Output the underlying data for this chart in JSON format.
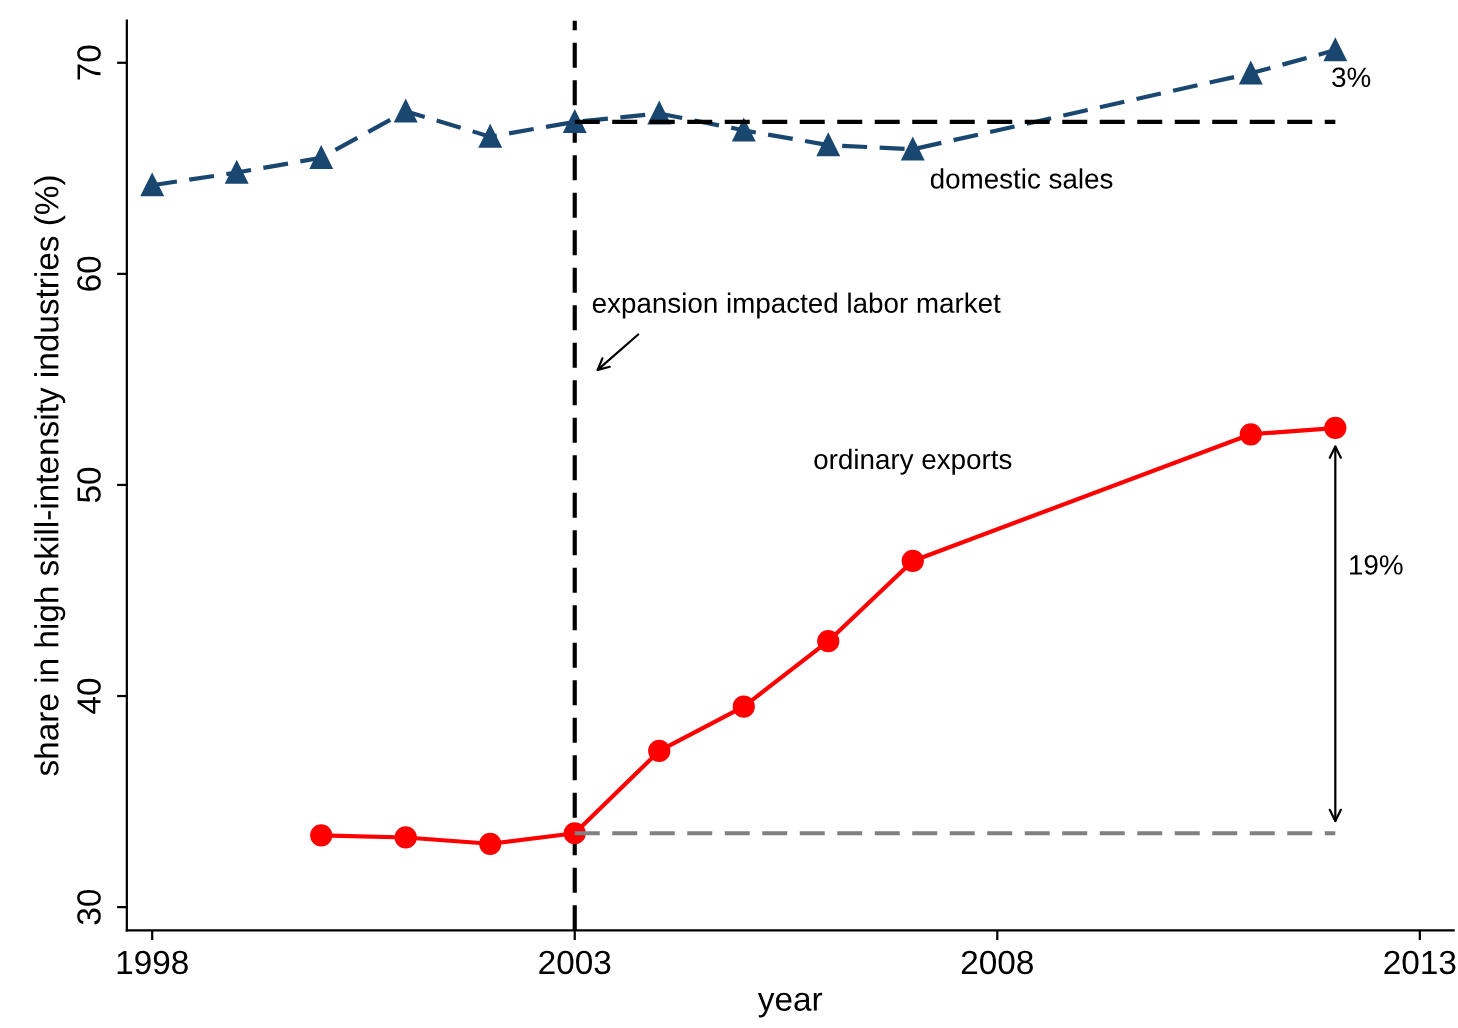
{
  "chart_data": {
    "type": "line",
    "xlabel": "year",
    "ylabel": "share in high skill-intensity industries (%)",
    "xlim": [
      1997.7,
      2013.4
    ],
    "xticks": [
      1998,
      2003,
      2008,
      2013
    ],
    "ylim": [
      28.9,
      72
    ],
    "yticks": [
      30,
      40,
      50,
      60,
      70
    ],
    "grid": false,
    "legend": false,
    "series": [
      {
        "name": "domestic sales",
        "color": "#1a476f",
        "marker": "triangle",
        "line_style": "dashed",
        "x": [
          1998,
          1999,
          2000,
          2001,
          2002,
          2003,
          2004,
          2005,
          2006,
          2007,
          2011,
          2012
        ],
        "values": [
          64.2,
          64.8,
          65.5,
          67.7,
          66.5,
          67.2,
          67.6,
          66.8,
          66.1,
          65.9,
          69.5,
          70.6
        ]
      },
      {
        "name": "ordinary exports",
        "color": "#ff0000",
        "marker": "circle",
        "line_style": "solid",
        "x": [
          2000,
          2001,
          2002,
          2003,
          2004,
          2005,
          2006,
          2007,
          2011,
          2012
        ],
        "values": [
          33.4,
          33.3,
          33.0,
          33.5,
          37.4,
          39.5,
          42.6,
          46.4,
          52.4,
          52.7
        ]
      },
      {
        "color": "#000000",
        "marker": "none",
        "line_style": "dashed",
        "x": [
          2003,
          2012
        ],
        "values": [
          67.2,
          67.2
        ]
      },
      {
        "color": "#808080",
        "marker": "none",
        "line_style": "dashed",
        "x": [
          2003,
          2012
        ],
        "values": [
          33.5,
          33.5
        ]
      }
    ],
    "ref_lines": [
      {
        "axis": "x",
        "value": 2003,
        "color": "#000000",
        "line_style": "dashed"
      }
    ],
    "annotations": [
      "expansion impacted labor market",
      "3%",
      "19%"
    ]
  }
}
